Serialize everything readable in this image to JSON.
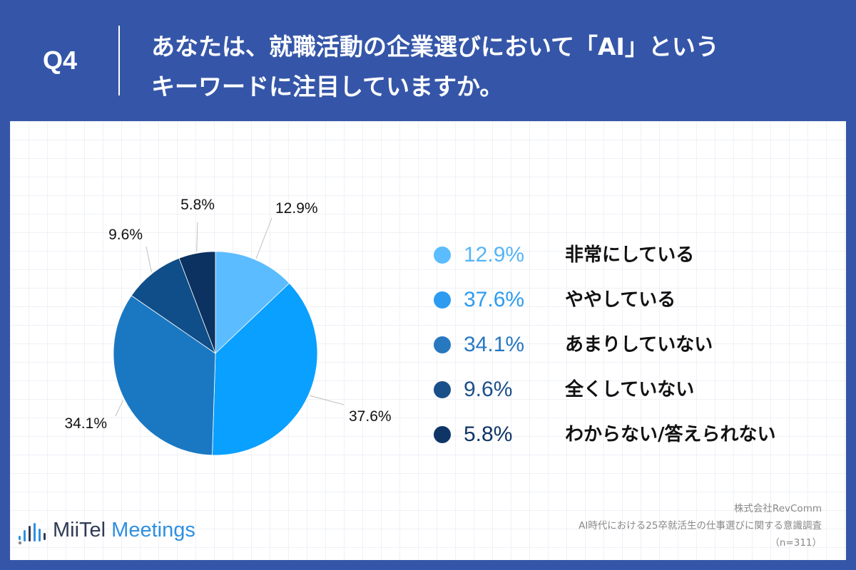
{
  "header": {
    "q_label": "Q4",
    "question_line1": "あなたは、就職活動の企業選びにおいて「AI」という",
    "question_line2": "キーワードに注目していますか。"
  },
  "chart_data": {
    "type": "pie",
    "slices": [
      {
        "label": "非常にしている",
        "value": 12.9,
        "pct_label": "12.9%",
        "color": "#5bbcff"
      },
      {
        "label": "ややしている",
        "value": 37.6,
        "pct_label": "37.6%",
        "color": "#0aa0ff"
      },
      {
        "label": "あまりしていない",
        "value": 34.1,
        "pct_label": "34.1%",
        "color": "#1a78c2"
      },
      {
        "label": "全くしていない",
        "value": 9.6,
        "pct_label": "9.6%",
        "color": "#0f4e88"
      },
      {
        "label": "わからない/答えられない",
        "value": 5.8,
        "pct_label": "5.8%",
        "color": "#0b3260"
      }
    ],
    "legend_position": "right",
    "start_angle": "12 o'clock",
    "direction": "clockwise"
  },
  "legend": {
    "items": [
      {
        "pct": "12.9%",
        "text": "非常にしている",
        "color": "#5bbcff",
        "text_color": "#55b5f5"
      },
      {
        "pct": "37.6%",
        "text": "ややしている",
        "color": "#2d9bf0",
        "text_color": "#2d9bf0"
      },
      {
        "pct": "34.1%",
        "text": "あまりしていない",
        "color": "#2878c0",
        "text_color": "#2878c0"
      },
      {
        "pct": "9.6%",
        "text": "全くしていない",
        "color": "#1b4f8a",
        "text_color": "#1b4f8a"
      },
      {
        "pct": "5.8%",
        "text": "わからない/答えられない",
        "color": "#0f3566",
        "text_color": "#0f3566"
      }
    ]
  },
  "logo": {
    "part1": "MiiTel",
    "part2": " Meetings"
  },
  "source": {
    "line1": "株式会社RevComm",
    "line2": "AI時代における25卒就活生の仕事選びに関する意識調査",
    "line3": "（n=311）"
  },
  "colors": {
    "header_bg": "#3556a8",
    "panel_bg": "#ffffff"
  }
}
